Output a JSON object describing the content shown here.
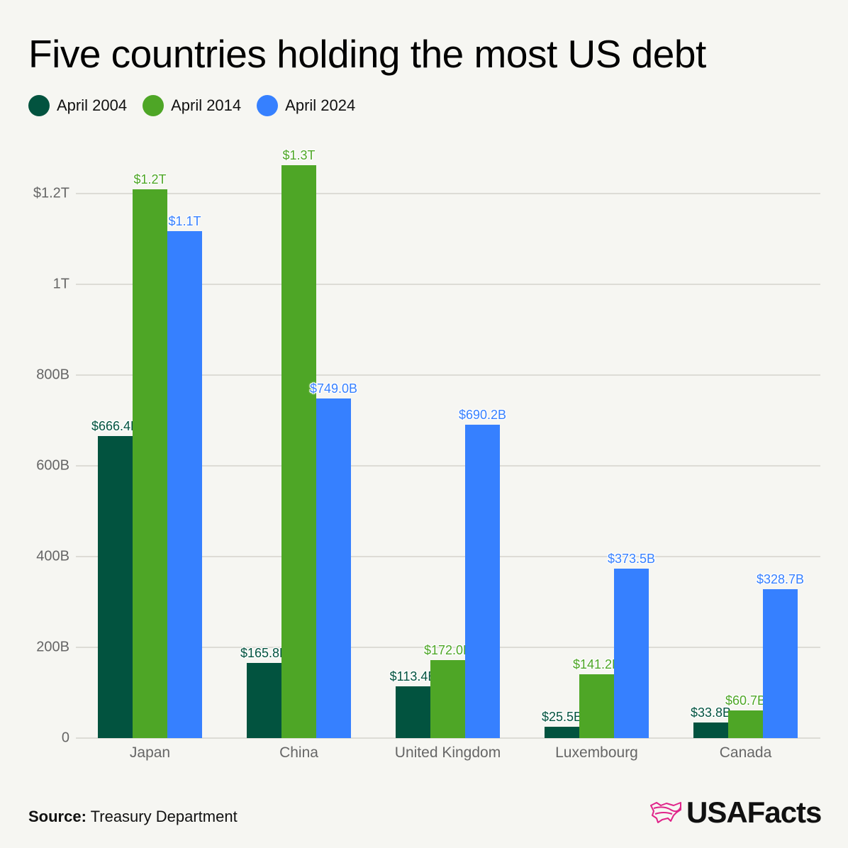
{
  "title": "Five countries holding the most US debt",
  "legend": [
    {
      "label": "April 2004",
      "color": "#02533f"
    },
    {
      "label": "April 2014",
      "color": "#4ea626"
    },
    {
      "label": "April 2024",
      "color": "#3680ff"
    }
  ],
  "y_ticks": [
    "0",
    "200B",
    "400B",
    "600B",
    "800B",
    "1T",
    "$1.2T"
  ],
  "footer": {
    "source_label": "Source:",
    "source_value": "Treasury Department",
    "brand": "USAFacts"
  },
  "chart_data": {
    "type": "bar",
    "title": "Five countries holding the most US debt",
    "xlabel": "",
    "ylabel": "",
    "units": "billions USD",
    "categories": [
      "Japan",
      "China",
      "United Kingdom",
      "Luxembourg",
      "Canada"
    ],
    "series": [
      {
        "name": "April 2004",
        "color": "#02533f",
        "values": [
          666.4,
          165.8,
          113.4,
          25.5,
          33.8
        ],
        "labels": [
          "$666.4B",
          "$165.8B",
          "$113.4B",
          "$25.5B",
          "$33.8B"
        ]
      },
      {
        "name": "April 2014",
        "color": "#4ea626",
        "values": [
          1210,
          1263,
          172.0,
          141.2,
          60.7
        ],
        "labels": [
          "$1.2T",
          "$1.3T",
          "$172.0B",
          "$141.2B",
          "$60.7B"
        ]
      },
      {
        "name": "April 2024",
        "color": "#3680ff",
        "values": [
          1117,
          749.0,
          690.2,
          373.5,
          328.7
        ],
        "labels": [
          "$1.1T",
          "$749.0B",
          "$690.2B",
          "$373.5B",
          "$328.7B"
        ]
      }
    ],
    "y_ticks": [
      0,
      200,
      400,
      600,
      800,
      1000,
      1200
    ],
    "y_tick_labels": [
      "0",
      "200B",
      "400B",
      "600B",
      "800B",
      "1T",
      "$1.2T"
    ],
    "ylim": [
      0,
      1300
    ],
    "grid": true,
    "legend_position": "top-left"
  }
}
